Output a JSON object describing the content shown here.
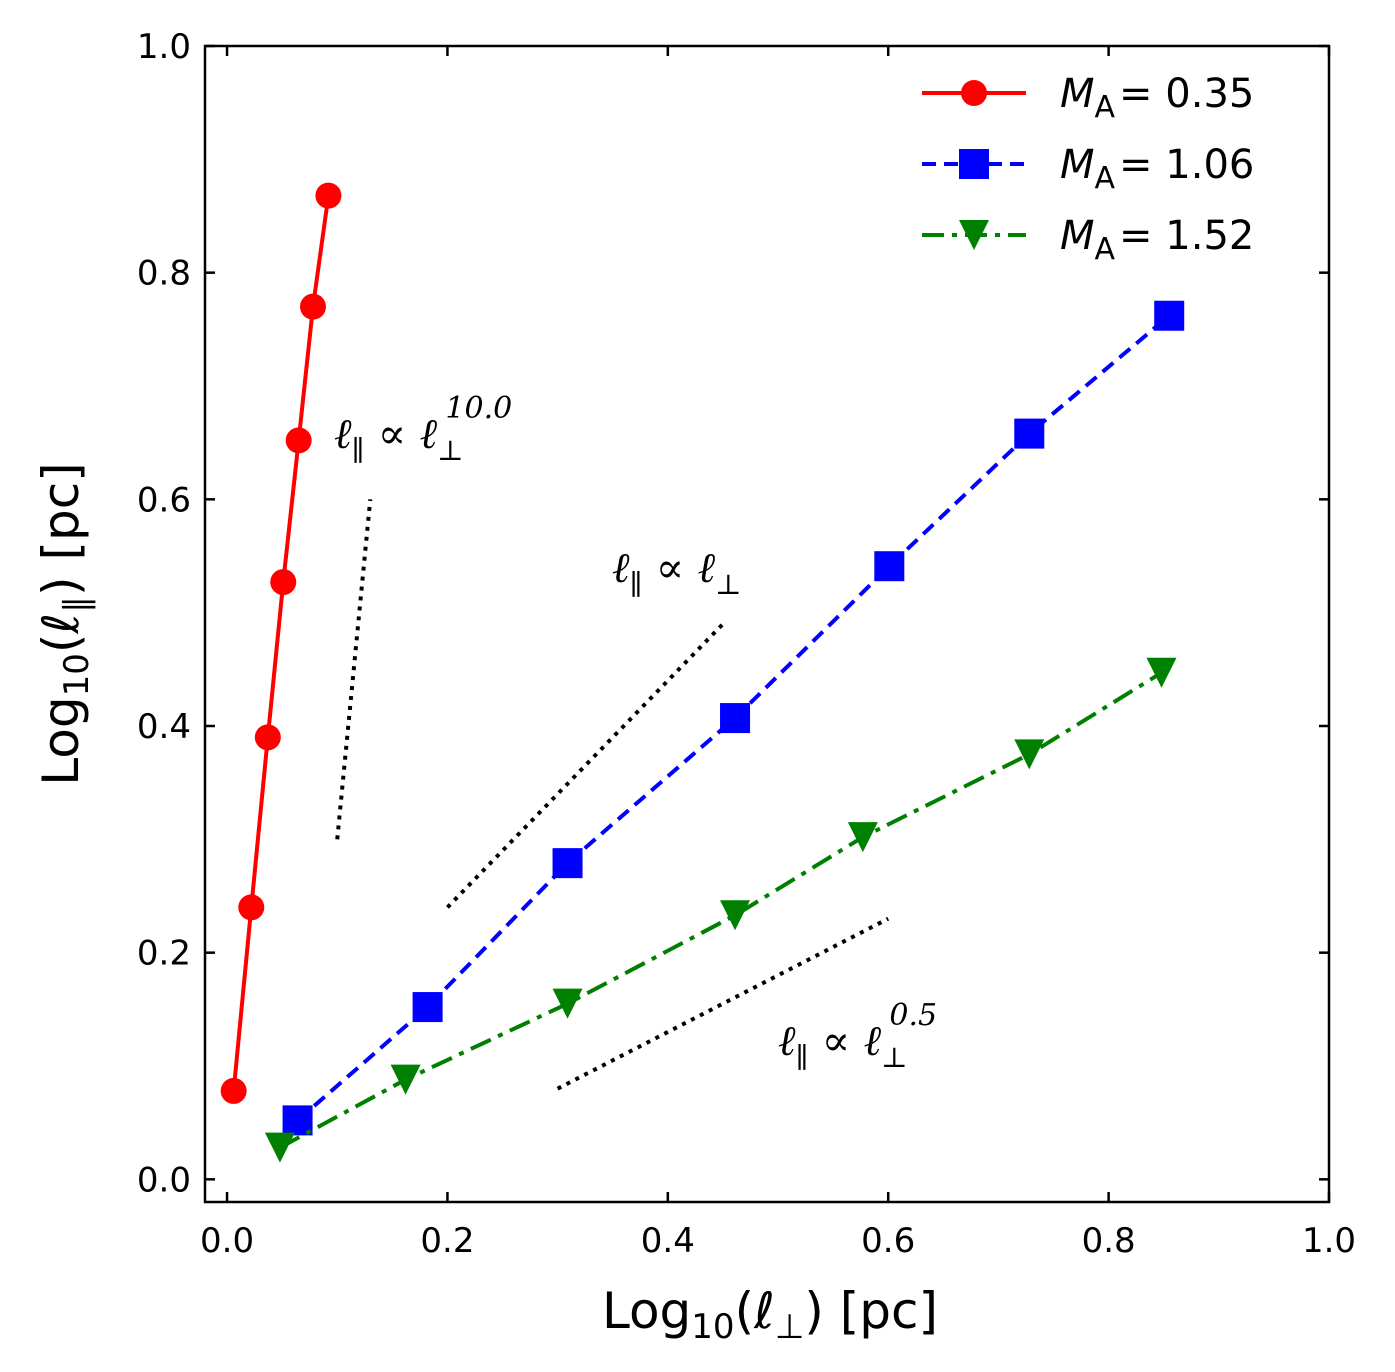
{
  "chart_data": {
    "type": "line",
    "xlabel": {
      "prefix": "Log",
      "sub": "10",
      "open": "(ℓ",
      "symbol_sub": "⊥",
      "close": ") [pc]"
    },
    "ylabel": {
      "prefix": "Log",
      "sub": "10",
      "open": "(ℓ",
      "symbol_sub": "∥",
      "close": ") [pc]"
    },
    "xlim": [
      -0.02,
      1.0
    ],
    "ylim": [
      -0.02,
      1.0
    ],
    "xticks": [
      0.0,
      0.2,
      0.4,
      0.6,
      0.8,
      1.0
    ],
    "xtick_labels": [
      "0.0",
      "0.2",
      "0.4",
      "0.6",
      "0.8",
      "1.0"
    ],
    "yticks": [
      0.0,
      0.2,
      0.4,
      0.6,
      0.8,
      1.0
    ],
    "ytick_labels": [
      "0.0",
      "0.2",
      "0.4",
      "0.6",
      "0.8",
      "1.0"
    ],
    "legend_position": "top-right",
    "series": [
      {
        "name": "M_A = 0.35",
        "legend_italic": "M",
        "legend_sub": "A",
        "legend_rest": "=  0.35",
        "color": "#ff0000",
        "linestyle": "solid",
        "marker": "circle",
        "x": [
          0.006,
          0.022,
          0.037,
          0.051,
          0.065,
          0.078,
          0.092
        ],
        "y": [
          0.078,
          0.24,
          0.39,
          0.527,
          0.652,
          0.77,
          0.868
        ]
      },
      {
        "name": "M_A = 1.06",
        "legend_italic": "M",
        "legend_sub": "A",
        "legend_rest": "=  1.06",
        "color": "#0000ff",
        "linestyle": "dashed",
        "marker": "square",
        "x": [
          0.064,
          0.182,
          0.309,
          0.461,
          0.601,
          0.728,
          0.855
        ],
        "y": [
          0.052,
          0.152,
          0.279,
          0.407,
          0.541,
          0.658,
          0.762
        ]
      },
      {
        "name": "M_A = 1.52",
        "legend_italic": "M",
        "legend_sub": "A",
        "legend_rest": "=  1.52",
        "color": "#008000",
        "linestyle": "dashdot",
        "marker": "triangle-down",
        "x": [
          0.048,
          0.162,
          0.309,
          0.461,
          0.577,
          0.728,
          0.848
        ],
        "y": [
          0.028,
          0.088,
          0.155,
          0.233,
          0.302,
          0.375,
          0.447
        ]
      }
    ],
    "reference_lines": [
      {
        "label_main": "ℓ",
        "label_sub": "∥",
        "label_mid": " ∝ ℓ",
        "label_sub2": "⊥",
        "label_sup": "10.0",
        "x": [
          0.1,
          0.13
        ],
        "y": [
          0.3,
          0.6
        ]
      },
      {
        "label_main": "ℓ",
        "label_sub": "∥",
        "label_mid": " ∝ ℓ",
        "label_sub2": "⊥",
        "label_sup": "",
        "x": [
          0.2,
          0.45
        ],
        "y": [
          0.24,
          0.49
        ]
      },
      {
        "label_main": "ℓ",
        "label_sub": "∥",
        "label_mid": " ∝ ℓ",
        "label_sub2": "⊥",
        "label_sup": "0.5",
        "x": [
          0.3,
          0.6
        ],
        "y": [
          0.08,
          0.23
        ]
      }
    ]
  }
}
